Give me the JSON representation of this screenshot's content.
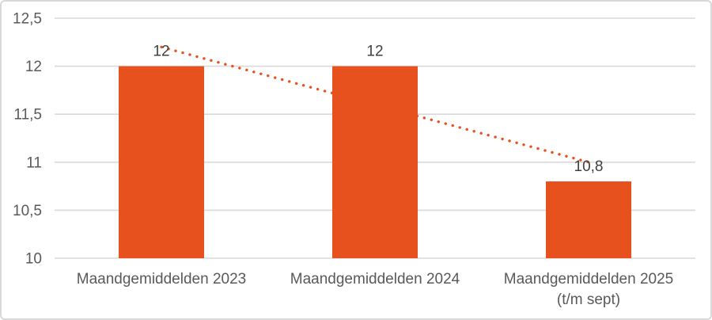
{
  "chart_data": {
    "type": "bar",
    "title": "",
    "xlabel": "",
    "ylabel": "",
    "categories": [
      [
        "Maandgemiddelden 2023"
      ],
      [
        "Maandgemiddelden 2024"
      ],
      [
        "Maandgemiddelden 2025",
        "(t/m sept)"
      ]
    ],
    "values": [
      12,
      12,
      10.8
    ],
    "data_labels": [
      "12",
      "12",
      "10,8"
    ],
    "ylim": [
      10,
      12.5
    ],
    "y_ticks": [
      {
        "value": 10,
        "label": "10"
      },
      {
        "value": 10.5,
        "label": "10,5"
      },
      {
        "value": 11,
        "label": "11"
      },
      {
        "value": 11.5,
        "label": "11,5"
      },
      {
        "value": 12,
        "label": "12"
      },
      {
        "value": 12.5,
        "label": "12,5"
      }
    ],
    "grid": true,
    "legend": "none",
    "trendline": {
      "type": "linear",
      "style": "dotted",
      "start_value": 12.2,
      "end_value": 11.0
    },
    "colors": {
      "bar": "#e7511e",
      "trendline": "#e7511e",
      "gridline": "#d9d9d9",
      "tick_label": "#595959",
      "category_label": "#595959",
      "data_label": "#404040",
      "frame_border": "#d8d8d8",
      "background": "#ffffff"
    }
  }
}
